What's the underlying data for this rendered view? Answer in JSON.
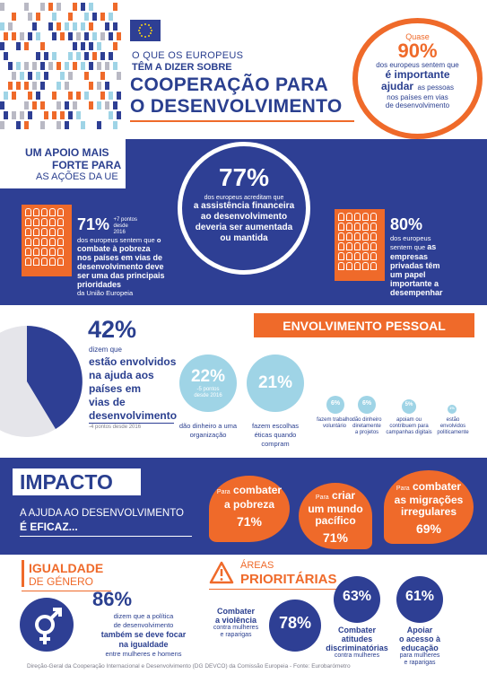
{
  "header": {
    "eu_flag_icon": "eu-flag-icon",
    "line1": "O QUE OS EUROPEUS",
    "line2": "TÊM A DIZER SOBRE",
    "title1": "COOPERAÇÃO PARA",
    "title2": "O DESENVOLVIMENTO"
  },
  "top_stat": {
    "pre": "Quase",
    "value": "90%",
    "t1": "dos europeus sentem que",
    "t2": "é importante",
    "t3": "ajudar",
    "t4": "as pessoas",
    "t5": "nos países em vias",
    "t6": "de desenvolvimento"
  },
  "support": {
    "heading1": "UM APOIO MAIS",
    "heading2": "FORTE PARA",
    "heading3": "AS AÇÕES DA UE"
  },
  "center_stat": {
    "value": "77%",
    "t1": "dos europeus acreditam que",
    "t2": "a assistência financeira",
    "t3": "ao desenvolvimento",
    "t4": "deveria ser aumentada",
    "t5": "ou mantida"
  },
  "left_stat": {
    "value": "71%",
    "change": "+7 pontos desde 2016",
    "t1": "dos europeus sentem que",
    "t2": "o",
    "t3": "combate à pobreza",
    "t4": "nos países em vias de",
    "t5": "desenvolvimento deve",
    "t6": "ser uma das principais",
    "t7": "prioridades",
    "t8": "da União Europeia"
  },
  "right_stat": {
    "value": "80%",
    "t1": "dos europeus",
    "t2": "sentem que",
    "t3": "as",
    "t4": "empresas",
    "t5": "privadas têm",
    "t6": "um papel",
    "t7": "importante a",
    "t8": "desempenhar"
  },
  "personal": {
    "banner": "ENVOLVIMENTO PESSOAL",
    "value": "42%",
    "t1": "dizem que",
    "t2": "estão envolvidos",
    "t3": "na ajuda aos",
    "t4": "países em",
    "t5": "vias de",
    "t6": "desenvolvimento",
    "change": "-4 pontos desde 2016",
    "items": [
      {
        "value": "22%",
        "change": "-5 pontos desde 2016",
        "label": "dão dinheiro a uma organização"
      },
      {
        "value": "21%",
        "label": "fazem escolhas éticas quando compram"
      },
      {
        "value": "6%",
        "label": "fazem trabalho voluntário"
      },
      {
        "value": "6%",
        "label": "dão dinheiro diretamente a projetos"
      },
      {
        "value": "5%",
        "label": "apoiam ou contribuem para campanhas digitais"
      },
      {
        "value": "1%",
        "label": "estão envolvidos politicamente"
      }
    ]
  },
  "impact": {
    "heading": "IMPACTO",
    "sub1": "A AJUDA AO DESENVOLVIMENTO",
    "sub2": "É EFICAZ...",
    "bubbles": [
      {
        "pre": "Para",
        "l1": "combater",
        "l2": "a pobreza",
        "value": "71%"
      },
      {
        "pre": "Para",
        "l1": "criar",
        "l2": "um mundo",
        "l3": "pacífico",
        "value": "71%"
      },
      {
        "pre": "Para",
        "l1": "combater",
        "l2": "as migrações",
        "l3": "irregulares",
        "value": "69%"
      }
    ]
  },
  "gender": {
    "heading1": "IGUALDADE",
    "heading2": "DE GÉNERO",
    "value": "86%",
    "t1": "dizem que a política",
    "t2": "de desenvolvimento",
    "t3": "também se deve focar",
    "t4": "na igualdade",
    "t5": "entre mulheres e homens"
  },
  "priority": {
    "heading1": "ÁREAS",
    "heading2": "PRIORITÁRIAS",
    "items": [
      {
        "l1": "Combater",
        "l2": "a violência",
        "l3": "contra mulheres",
        "l4": "e raparigas",
        "value": "78%"
      },
      {
        "l1": "Combater",
        "l2": "atitudes",
        "l3": "discriminatórias",
        "l4": "contra mulheres",
        "value": "63%"
      },
      {
        "l1": "Apoiar",
        "l2": "o acesso à",
        "l3": "educação",
        "l4": "para mulheres",
        "l5": "e raparigas",
        "value": "61%"
      }
    ]
  },
  "footer": "Direção-Geral da Cooperação Internacional e Desenvolvimento (DG DEVCO) da Comissão Europeia - Fonte: Eurobarómetro",
  "colors": {
    "navy": "#2e3f94",
    "orange": "#ef6a2a",
    "light_blue": "#9fd4e6",
    "grey": "#e5e5ea"
  }
}
